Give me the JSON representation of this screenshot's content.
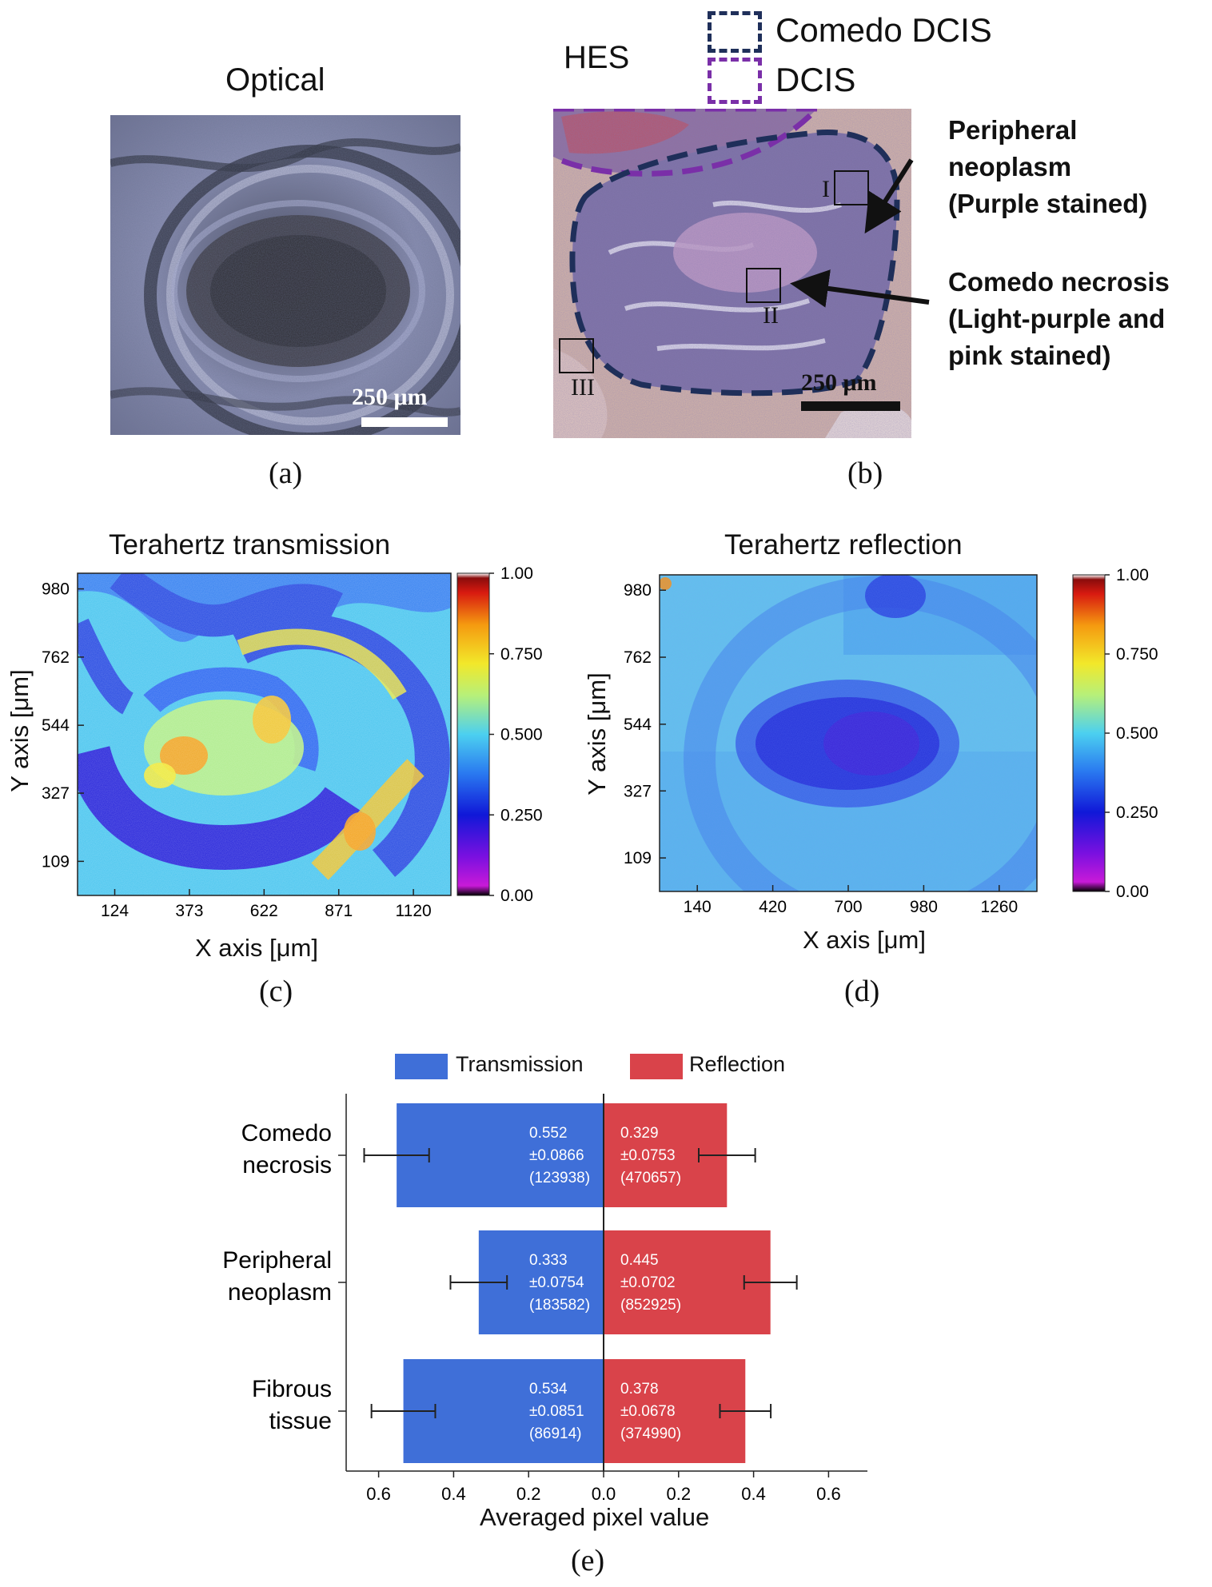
{
  "panel_a": {
    "title": "Optical",
    "scale_label": "250 μm",
    "letter": "(a)"
  },
  "panel_b": {
    "title": "HES",
    "legend": [
      "Comedo DCIS",
      "DCIS"
    ],
    "legend_colors": [
      "#1f2f5a",
      "#7a2fa8"
    ],
    "region_labels": [
      "I",
      "II",
      "III"
    ],
    "annot_peripheral": [
      "Peripheral",
      "neoplasm",
      "(Purple stained)"
    ],
    "annot_comedo": [
      "Comedo necrosis",
      "(Light-purple and",
      "pink stained)"
    ],
    "scale_label": "250 μm",
    "letter": "(b)"
  },
  "chart_data": [
    {
      "type": "heatmap",
      "panel": "c",
      "title": "Terahertz transmission",
      "xlabel": "X axis [μm]",
      "ylabel": "Y axis [μm]",
      "x_ticks": [
        124,
        373,
        622,
        871,
        1120
      ],
      "y_ticks": [
        109,
        327,
        544,
        762,
        980
      ],
      "colorbar_ticks": [
        "0.00",
        "0.250",
        "0.500",
        "0.750",
        "1.00"
      ],
      "clim": [
        0,
        1
      ],
      "letter": "(c)"
    },
    {
      "type": "heatmap",
      "panel": "d",
      "title": "Terahertz reflection",
      "xlabel": "X axis [μm]",
      "ylabel": "Y axis [μm]",
      "x_ticks": [
        140,
        420,
        700,
        980,
        1260
      ],
      "y_ticks": [
        109,
        327,
        544,
        762,
        980
      ],
      "colorbar_ticks": [
        "0.00",
        "0.250",
        "0.500",
        "0.750",
        "1.00"
      ],
      "clim": [
        0,
        1
      ],
      "letter": "(d)"
    },
    {
      "type": "bar",
      "panel": "e",
      "orientation": "horizontal-butterfly",
      "categories": [
        [
          "Comedo",
          "necrosis"
        ],
        [
          "Peripheral",
          "neoplasm"
        ],
        [
          "Fibrous",
          "tissue"
        ]
      ],
      "series": [
        {
          "name": "Transmission",
          "color": "#3f6fd8",
          "values": [
            0.552,
            0.333,
            0.534
          ],
          "errors": [
            0.0866,
            0.0754,
            0.0851
          ],
          "value_labels": [
            "0.552",
            "0.333",
            "0.534"
          ],
          "error_labels": [
            "±0.0866",
            "±0.0754",
            "±0.0851"
          ],
          "count_labels": [
            "(123938)",
            "(183582)",
            "(86914)"
          ]
        },
        {
          "name": "Reflection",
          "color": "#d9434a",
          "values": [
            0.329,
            0.445,
            0.378
          ],
          "errors": [
            0.0753,
            0.0702,
            0.0678
          ],
          "value_labels": [
            "0.329",
            "0.445",
            "0.378"
          ],
          "error_labels": [
            "±0.0753",
            "±0.0702",
            "±0.0678"
          ],
          "count_labels": [
            "(470657)",
            "(852925)",
            "(374990)"
          ]
        }
      ],
      "xlabel": "Averaged pixel value",
      "x_ticks": [
        "0.6",
        "0.4",
        "0.2",
        "0.0",
        "0.2",
        "0.4",
        "0.6"
      ],
      "xlim": [
        -0.7,
        0.7
      ],
      "legend_position": "top",
      "letter": "(e)"
    }
  ]
}
